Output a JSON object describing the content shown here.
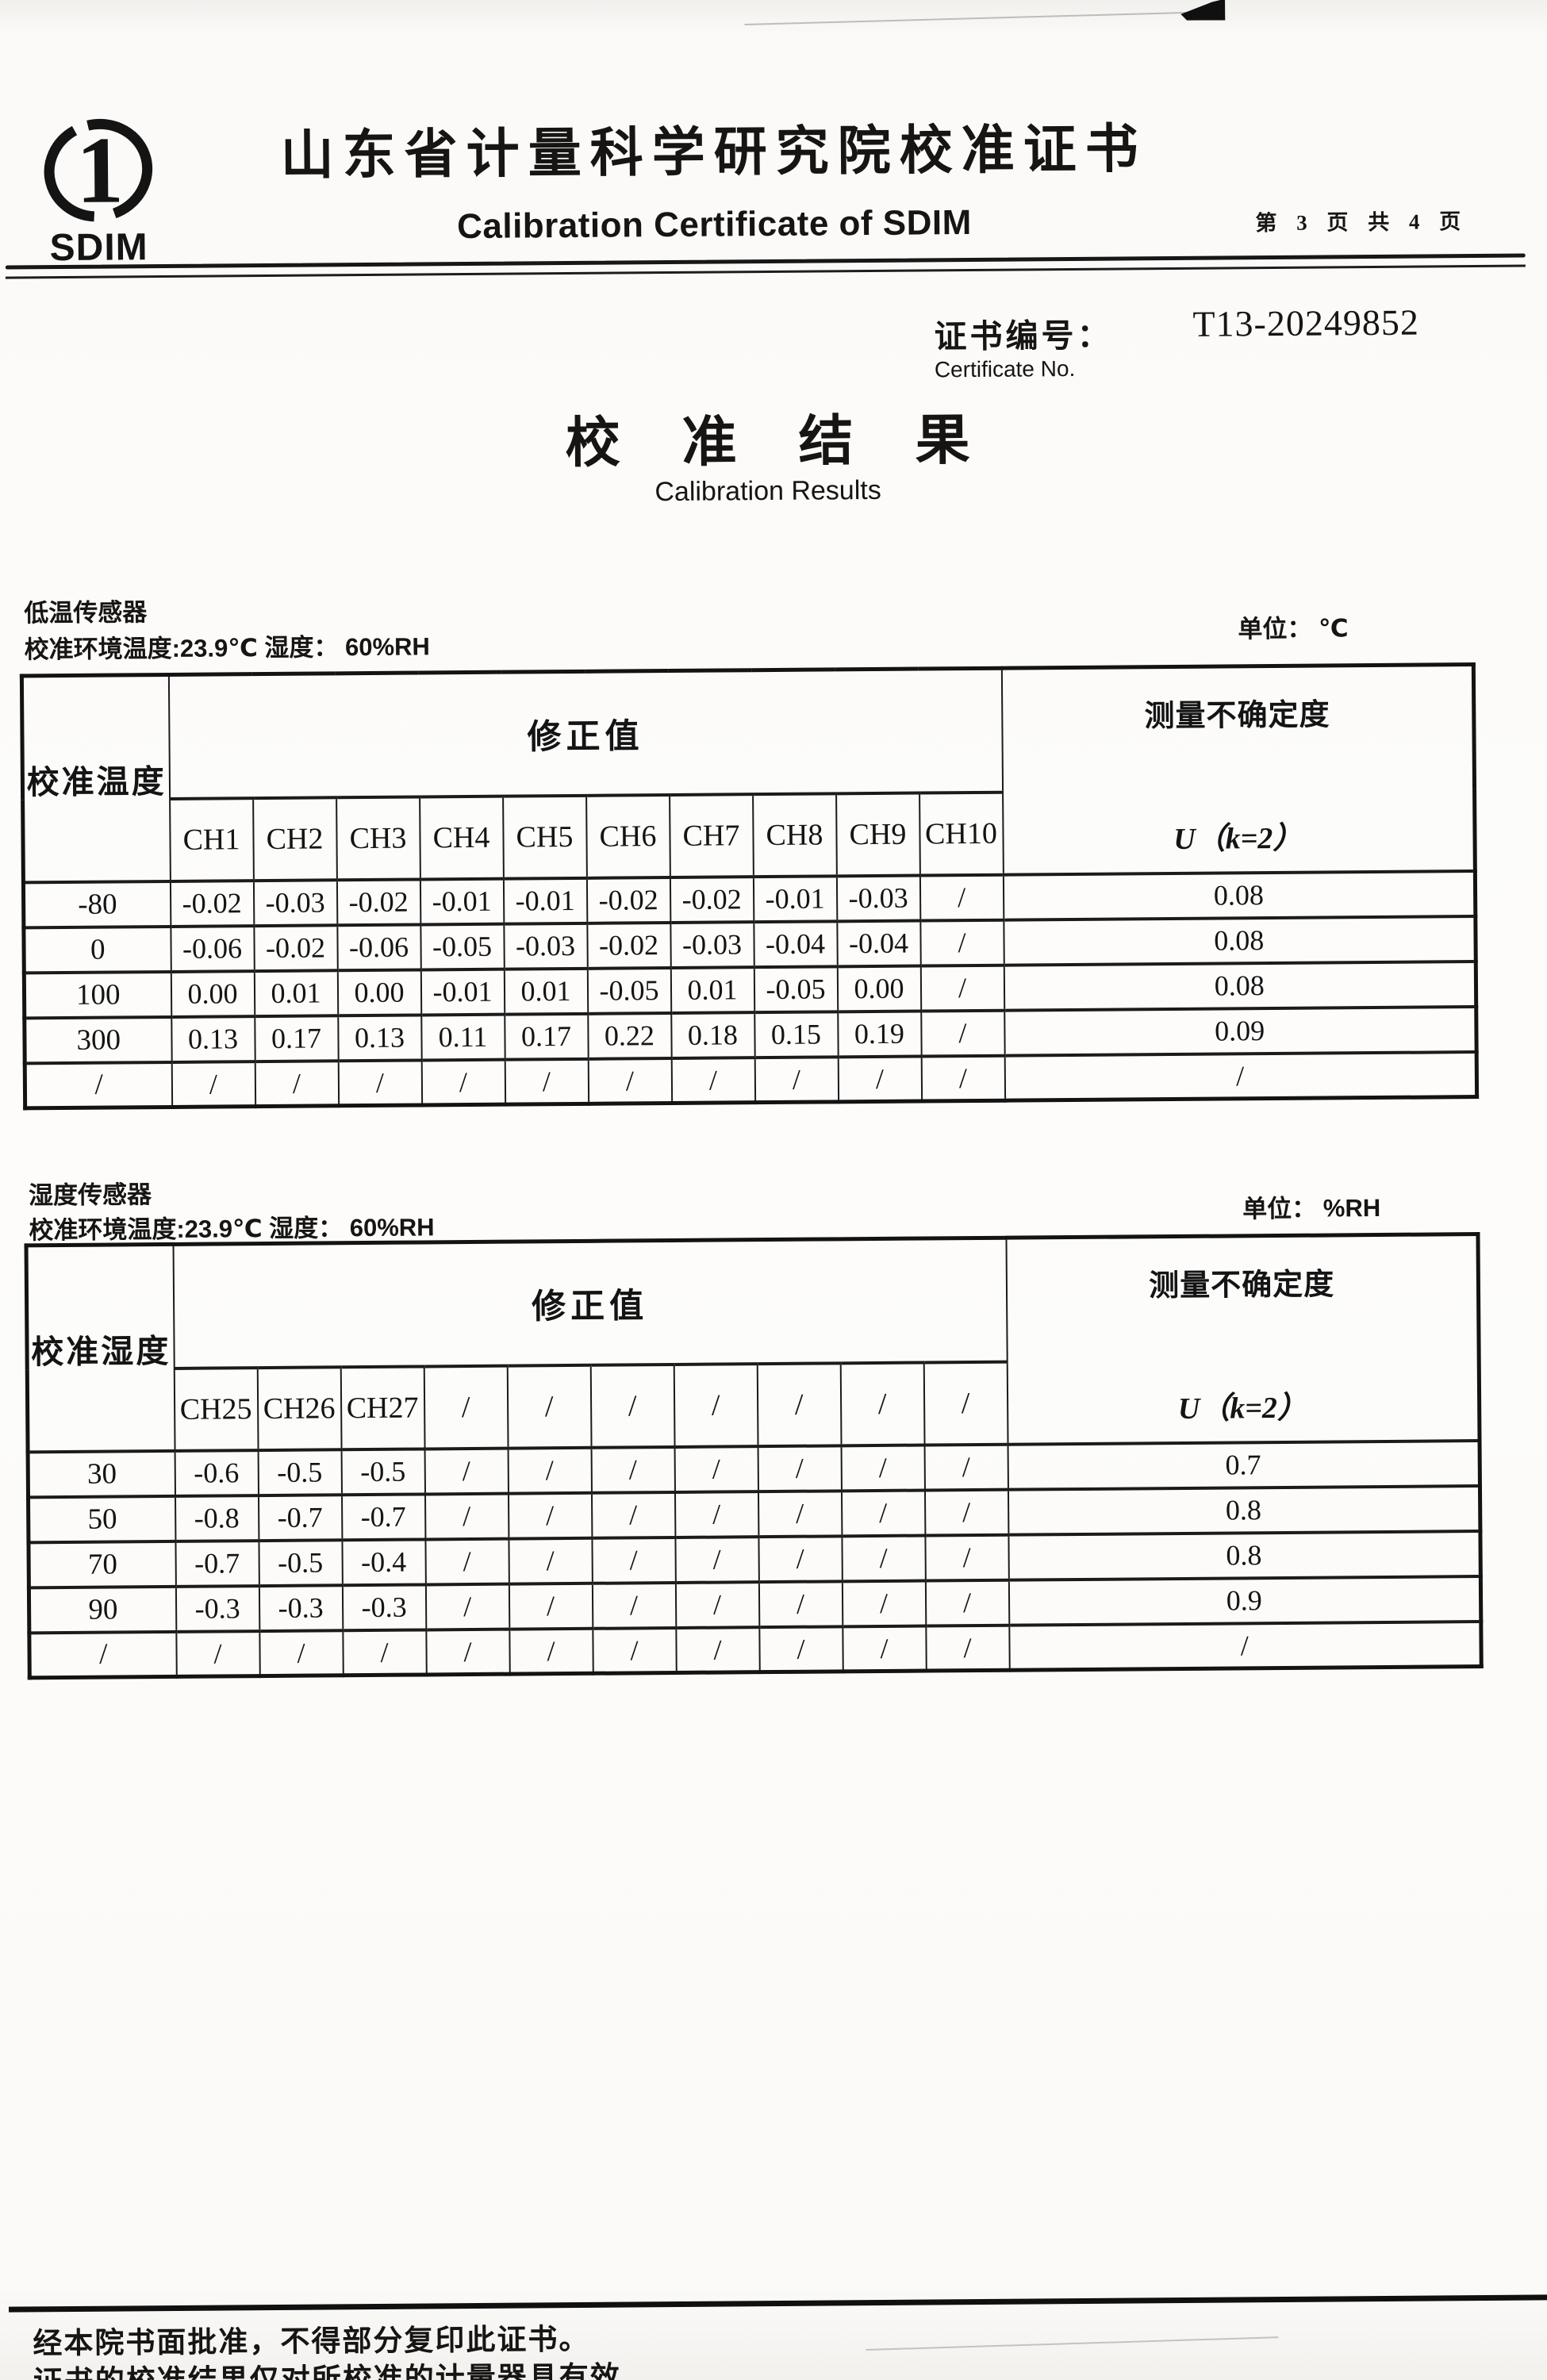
{
  "header": {
    "logo_text": "SDIM",
    "logo_mark": "1",
    "title_cn": "山东省计量科学研究院校准证书",
    "title_en": "Calibration Certificate of SDIM",
    "page_info": "第 3 页 共 4 页"
  },
  "certificate_no": {
    "label_cn": "证书编号：",
    "value": "T13-20249852",
    "label_en": "Certificate No."
  },
  "results": {
    "title_cn": "校准结果",
    "title_en": "Calibration Results"
  },
  "sections": [
    {
      "name": "低温传感器",
      "environment": "校准环境温度:23.9℃ 湿度：  60%RH",
      "unit": "单位： ℃",
      "table": {
        "corner_header": "校准温度",
        "correction_header": "修正值",
        "uncertainty_header": "测量不确定度",
        "uncertainty_formula": "U（k=2）",
        "channels": [
          "CH1",
          "CH2",
          "CH3",
          "CH4",
          "CH5",
          "CH6",
          "CH7",
          "CH8",
          "CH9",
          "CH10"
        ],
        "rows": [
          {
            "point": "-80",
            "values": [
              "-0.02",
              "-0.03",
              "-0.02",
              "-0.01",
              "-0.01",
              "-0.02",
              "-0.02",
              "-0.01",
              "-0.03",
              "/"
            ],
            "uncertainty": "0.08"
          },
          {
            "point": "0",
            "values": [
              "-0.06",
              "-0.02",
              "-0.06",
              "-0.05",
              "-0.03",
              "-0.02",
              "-0.03",
              "-0.04",
              "-0.04",
              "/"
            ],
            "uncertainty": "0.08"
          },
          {
            "point": "100",
            "values": [
              "0.00",
              "0.01",
              "0.00",
              "-0.01",
              "0.01",
              "-0.05",
              "0.01",
              "-0.05",
              "0.00",
              "/"
            ],
            "uncertainty": "0.08"
          },
          {
            "point": "300",
            "values": [
              "0.13",
              "0.17",
              "0.13",
              "0.11",
              "0.17",
              "0.22",
              "0.18",
              "0.15",
              "0.19",
              "/"
            ],
            "uncertainty": "0.09"
          },
          {
            "point": "/",
            "values": [
              "/",
              "/",
              "/",
              "/",
              "/",
              "/",
              "/",
              "/",
              "/",
              "/"
            ],
            "uncertainty": "/"
          }
        ]
      }
    },
    {
      "name": "湿度传感器",
      "environment": "校准环境温度:23.9℃ 湿度：  60%RH",
      "unit": "单位： %RH",
      "table": {
        "corner_header": "校准湿度",
        "correction_header": "修正值",
        "uncertainty_header": "测量不确定度",
        "uncertainty_formula": "U（k=2）",
        "channels": [
          "CH25",
          "CH26",
          "CH27",
          "/",
          "/",
          "/",
          "/",
          "/",
          "/",
          "/"
        ],
        "rows": [
          {
            "point": "30",
            "values": [
              "-0.6",
              "-0.5",
              "-0.5",
              "/",
              "/",
              "/",
              "/",
              "/",
              "/",
              "/"
            ],
            "uncertainty": "0.7"
          },
          {
            "point": "50",
            "values": [
              "-0.8",
              "-0.7",
              "-0.7",
              "/",
              "/",
              "/",
              "/",
              "/",
              "/",
              "/"
            ],
            "uncertainty": "0.8"
          },
          {
            "point": "70",
            "values": [
              "-0.7",
              "-0.5",
              "-0.4",
              "/",
              "/",
              "/",
              "/",
              "/",
              "/",
              "/"
            ],
            "uncertainty": "0.8"
          },
          {
            "point": "90",
            "values": [
              "-0.3",
              "-0.3",
              "-0.3",
              "/",
              "/",
              "/",
              "/",
              "/",
              "/",
              "/"
            ],
            "uncertainty": "0.9"
          },
          {
            "point": "/",
            "values": [
              "/",
              "/",
              "/",
              "/",
              "/",
              "/",
              "/",
              "/",
              "/",
              "/"
            ],
            "uncertainty": "/"
          }
        ]
      }
    }
  ],
  "footer": {
    "line1": "经本院书面批准，不得部分复印此证书。",
    "line2": "证书的校准结果仅对所校准的计量器具有效"
  },
  "colors": {
    "ink": "#141414",
    "paper": "#fbfaf8"
  }
}
